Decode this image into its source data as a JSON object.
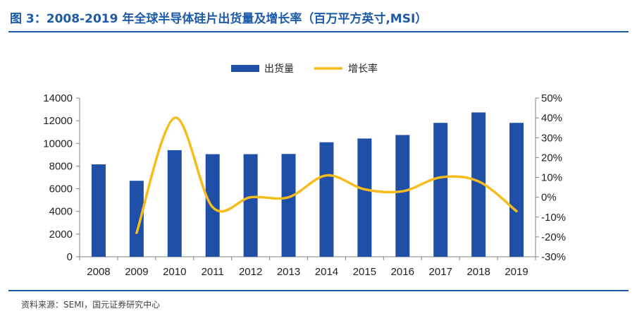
{
  "figure": {
    "title": "图 3：2008-2019 年全球半导体硅片出货量及增长率（百万平方英寸,MSI）",
    "source": "资料来源：SEMI，国元证券研究中心"
  },
  "colors": {
    "accent": "#1d5aa8",
    "bar": "#1f4fa6",
    "line": "#f5bc1c",
    "axis": "#808080"
  },
  "chart_data": {
    "type": "bar",
    "categories": [
      "2008",
      "2009",
      "2010",
      "2011",
      "2012",
      "2013",
      "2014",
      "2015",
      "2016",
      "2017",
      "2018",
      "2019"
    ],
    "series": [
      {
        "name": "出货量",
        "type": "bar",
        "axis": "left",
        "values": [
          8150,
          6700,
          9400,
          9050,
          9050,
          9070,
          10100,
          10430,
          10740,
          11810,
          12730,
          11810
        ]
      },
      {
        "name": "增长率",
        "type": "line",
        "axis": "right",
        "unit": "%",
        "values": [
          null,
          -18,
          40,
          -5,
          0,
          0,
          11,
          4,
          3,
          10,
          8,
          -7
        ]
      }
    ],
    "y_left": {
      "lim": [
        0,
        14000
      ],
      "ticks": [
        "0",
        "2000",
        "4000",
        "6000",
        "8000",
        "10000",
        "12000",
        "14000"
      ]
    },
    "y_right": {
      "lim": [
        -30,
        50
      ],
      "ticks": [
        "-30%",
        "-20%",
        "-10%",
        "0%",
        "10%",
        "20%",
        "30%",
        "40%",
        "50%"
      ]
    },
    "grid": false,
    "legend_position": "top-center"
  }
}
